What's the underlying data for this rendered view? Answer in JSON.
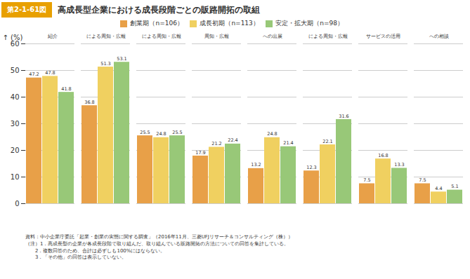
{
  "chart_data": {
    "type": "bar",
    "title": "高成長型企業における成長段階ごとの販路開拓の取組",
    "annotations": [
      "第2-1-61図",
      "資料：中小企業庁委託「起業・創業の実態に関する調査」（2016年11月、三菱UFJリサーチ＆コンサルティング（株））",
      "（注）1．高成長型の企業が各成長段階で取り組んだ、取り組んでいる販路開拓の方法についての回答を集計している。",
      "　　2．複数回答のため、合計は必ずしも100%にはならない。",
      "　　3．「その他」の回答は表示していない。"
    ],
    "categories": [
      "友人・知人・\n取引先等からの\n　紹介",
      "インターネット,\n新聞,テレビ等\nによる周知・広報",
      "チラシのポスティン\nグ,ダイレクトメール\nによる周知・広報",
      "業界紙やフリー\nペーパー等による\n周知・広報",
      "展示会・イベント等\nへの出展",
      "ソーシャル・ネット\nワーキング・サービス\nによる周知・広報",
      "民間企業,公的機\n関等の提供する\nビジネスマッチング\nサービスの活用",
      "商工会・商工会議\n所,公的支援機関\nへの相談"
    ],
    "series": [
      {
        "name": "創業期（n=106）",
        "color": "#E8A048",
        "values": [
          47.2,
          36.8,
          25.5,
          17.9,
          13.2,
          12.3,
          7.5,
          7.5
        ]
      },
      {
        "name": "成長初期（n=113）",
        "color": "#F0D060",
        "values": [
          47.8,
          51.3,
          24.8,
          21.2,
          24.8,
          22.1,
          16.8,
          4.4
        ]
      },
      {
        "name": "安定・拡大期（n=98）",
        "color": "#98C878",
        "values": [
          41.8,
          53.1,
          25.5,
          22.4,
          21.4,
          31.6,
          13.3,
          5.1
        ]
      }
    ],
    "ylabel": "(%)",
    "ylim": [
      0,
      60
    ],
    "yticks": [
      0,
      10,
      20,
      30,
      40,
      50,
      60
    ],
    "grid": true,
    "legend": "top",
    "data_labels": true
  }
}
